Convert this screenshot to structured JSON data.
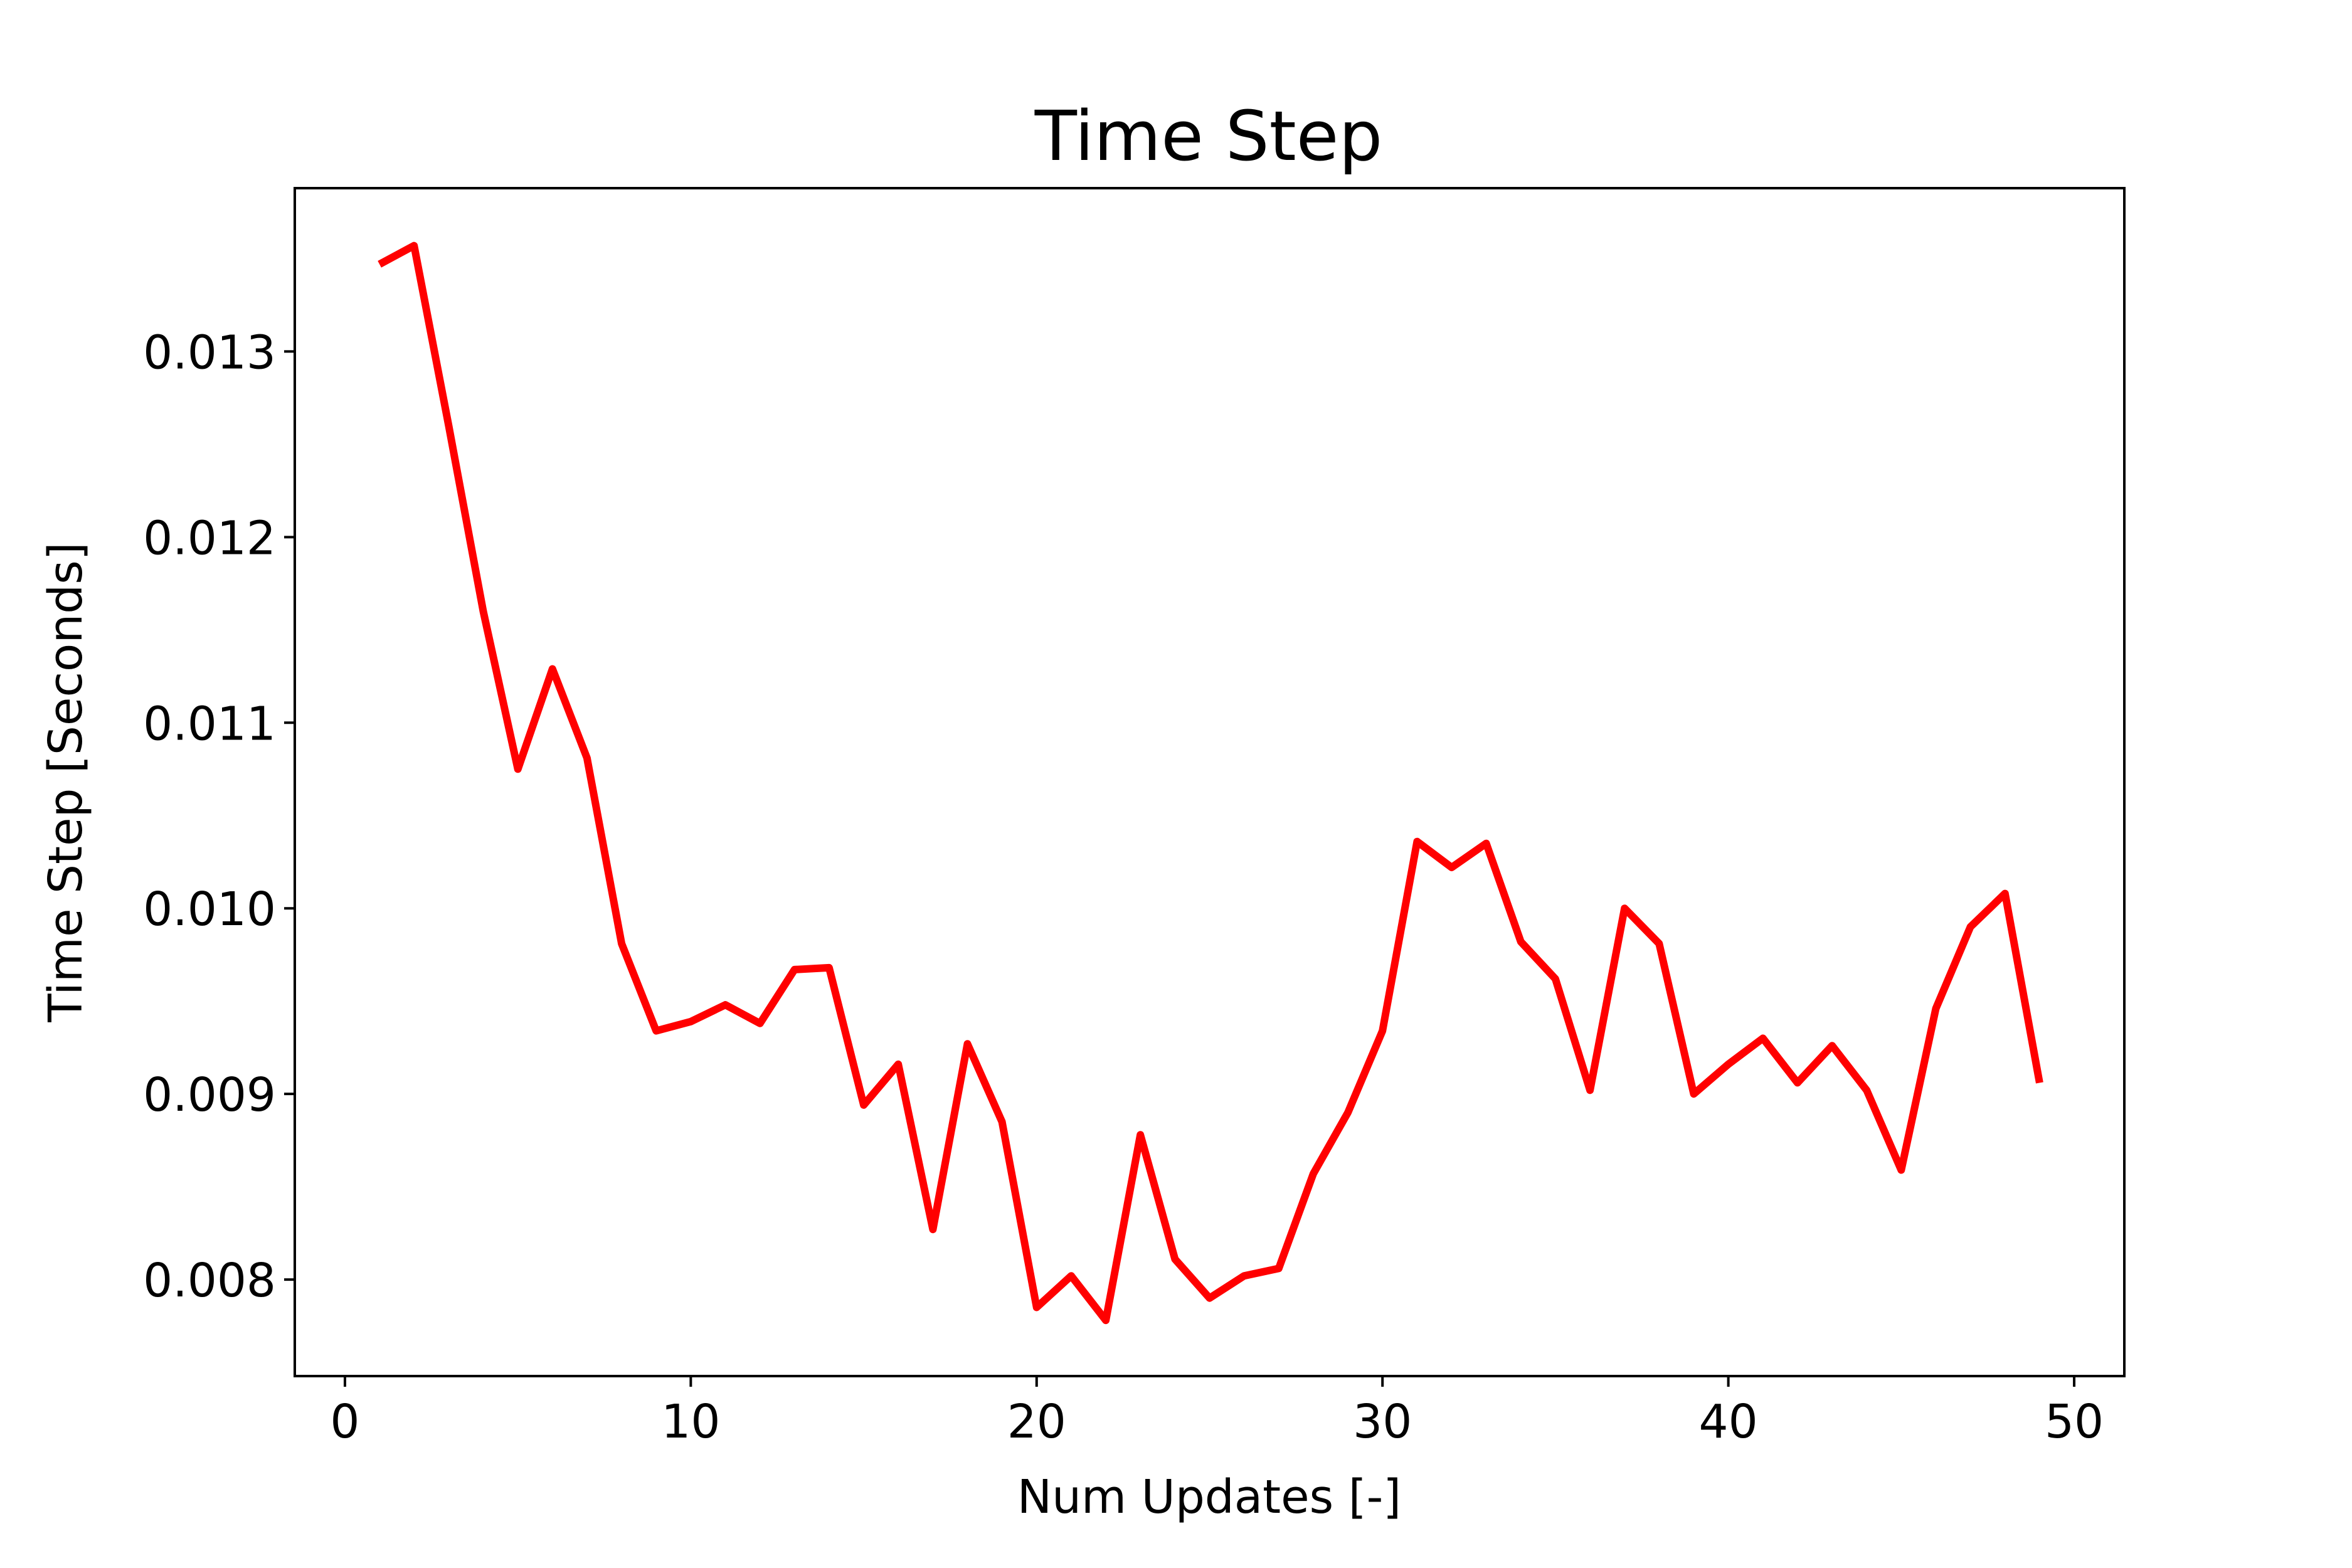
{
  "chart_data": {
    "type": "line",
    "title": "Time Step",
    "xlabel": "Num Updates [-]",
    "ylabel": "Time Step [Seconds]",
    "xlim": [
      -1.45,
      51.45
    ],
    "ylim": [
      0.00748,
      0.01388
    ],
    "xticks": [
      0,
      10,
      20,
      30,
      40,
      50
    ],
    "xtick_labels": [
      "0",
      "10",
      "20",
      "30",
      "40",
      "50"
    ],
    "yticks": [
      0.008,
      0.009,
      0.01,
      0.011,
      0.012,
      0.013
    ],
    "ytick_labels": [
      "0.008",
      "0.009",
      "0.010",
      "0.011",
      "0.012",
      "0.013"
    ],
    "grid": false,
    "legend": "none",
    "series": [
      {
        "color": "#ff0000",
        "x": [
          1,
          2,
          3,
          4,
          5,
          6,
          7,
          8,
          9,
          10,
          11,
          12,
          13,
          14,
          15,
          16,
          17,
          18,
          19,
          20,
          21,
          22,
          23,
          24,
          25,
          26,
          27,
          28,
          29,
          30,
          31,
          32,
          33,
          34,
          35,
          36,
          37,
          38,
          39,
          40,
          41,
          42,
          43,
          44,
          45,
          46,
          47,
          48,
          49
        ],
        "y": [
          0.01347,
          0.01357,
          0.0126,
          0.0116,
          0.01075,
          0.01129,
          0.01081,
          0.00981,
          0.00934,
          0.00939,
          0.00948,
          0.00938,
          0.00967,
          0.00968,
          0.00894,
          0.00916,
          0.00827,
          0.00927,
          0.00885,
          0.00785,
          0.00802,
          0.00778,
          0.00878,
          0.00811,
          0.0079,
          0.00802,
          0.00806,
          0.00857,
          0.0089,
          0.00934,
          0.01036,
          0.01022,
          0.01035,
          0.00982,
          0.00962,
          0.00902,
          0.01,
          0.00981,
          0.009,
          0.00916,
          0.0093,
          0.00906,
          0.00926,
          0.00902,
          0.00859,
          0.00946,
          0.0099,
          0.01008,
          0.00906
        ]
      }
    ]
  }
}
